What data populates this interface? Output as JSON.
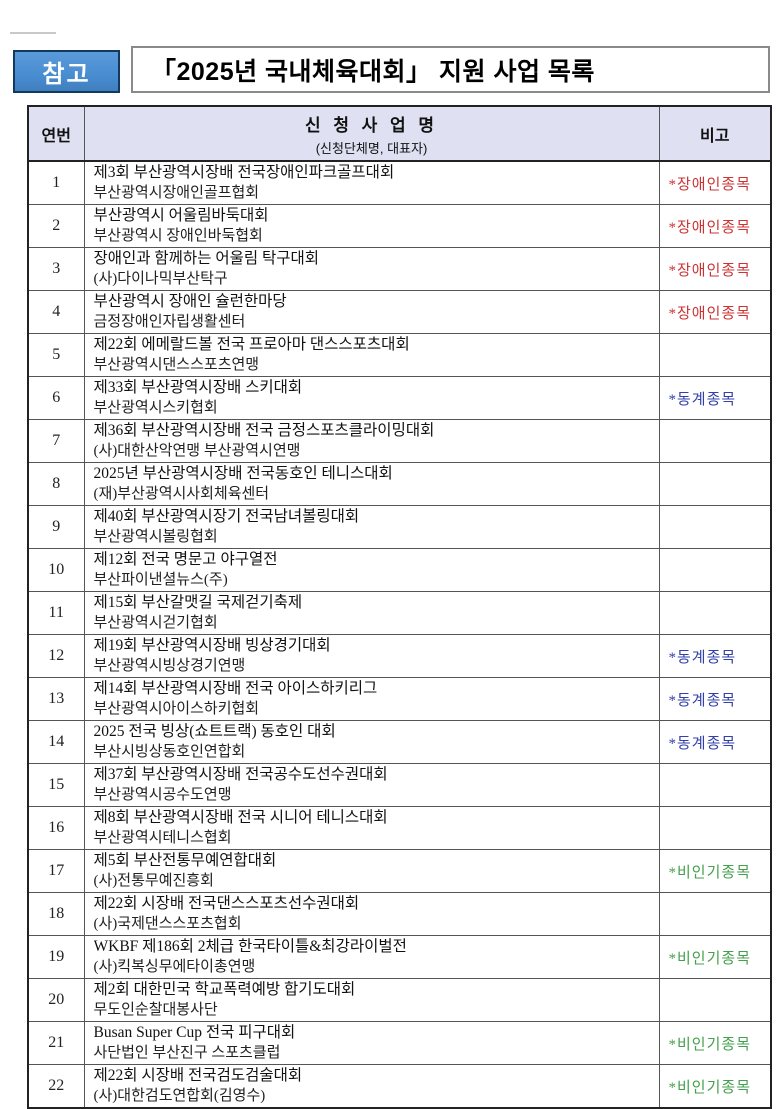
{
  "badge": {
    "label": "참고"
  },
  "title": "「2025년 국내체육대회」  지원 사업 목록",
  "colors": {
    "badge_bg": "#4a8ed2",
    "badge_border": "#123a5e",
    "header_bg": "#dfe1f3",
    "remark_disabled": "#cc3333",
    "remark_winter": "#3340aa",
    "remark_unpopular": "#44a04c"
  },
  "table": {
    "headers": {
      "no": "연번",
      "project": "신 청 사 업 명",
      "project_sub": "(신청단체명, 대표자)",
      "remark": "비고"
    },
    "rows": [
      {
        "no": "1",
        "title": "제3회 부산광역시장배 전국장애인파크골프대회",
        "org": "부산광역시장애인골프협회",
        "remark": "*장애인종목",
        "remark_type": "disabled"
      },
      {
        "no": "2",
        "title": "부산광역시 어울림바둑대회",
        "org": "부산광역시 장애인바둑협회",
        "remark": "*장애인종목",
        "remark_type": "disabled"
      },
      {
        "no": "3",
        "title": "장애인과 함께하는 어울림 탁구대회",
        "org": "(사)다이나믹부산탁구",
        "remark": "*장애인종목",
        "remark_type": "disabled"
      },
      {
        "no": "4",
        "title": "부산광역시 장애인 슐런한마당",
        "org": "금정장애인자립생활센터",
        "remark": "*장애인종목",
        "remark_type": "disabled"
      },
      {
        "no": "5",
        "title": "제22회 에메랄드볼 전국 프로아마 댄스스포츠대회",
        "org": "부산광역시댄스스포츠연맹",
        "remark": "",
        "remark_type": ""
      },
      {
        "no": "6",
        "title": "제33회 부산광역시장배 스키대회",
        "org": "부산광역시스키협회",
        "remark": "*동계종목",
        "remark_type": "winter"
      },
      {
        "no": "7",
        "title": "제36회 부산광역시장배 전국 금정스포츠클라이밍대회",
        "org": "(사)대한산악연맹 부산광역시연맹",
        "remark": "",
        "remark_type": ""
      },
      {
        "no": "8",
        "title": "2025년 부산광역시장배 전국동호인 테니스대회",
        "org": "(재)부산광역시사회체육센터",
        "remark": "",
        "remark_type": ""
      },
      {
        "no": "9",
        "title": "제40회 부산광역시장기 전국남녀볼링대회",
        "org": "부산광역시볼링협회",
        "remark": "",
        "remark_type": ""
      },
      {
        "no": "10",
        "title": "제12회 전국 명문고 야구열전",
        "org": "부산파이낸셜뉴스(주)",
        "remark": "",
        "remark_type": ""
      },
      {
        "no": "11",
        "title": "제15회 부산갈맷길 국제걷기축제",
        "org": "부산광역시걷기협회",
        "remark": "",
        "remark_type": ""
      },
      {
        "no": "12",
        "title": "제19회 부산광역시장배 빙상경기대회",
        "org": "부산광역시빙상경기연맹",
        "remark": "*동계종목",
        "remark_type": "winter"
      },
      {
        "no": "13",
        "title": "제14회 부산광역시장배 전국 아이스하키리그",
        "org": "부산광역시아이스하키협회",
        "remark": "*동계종목",
        "remark_type": "winter"
      },
      {
        "no": "14",
        "title": "2025 전국 빙상(쇼트트랙) 동호인 대회",
        "org": "부산시빙상동호인연합회",
        "remark": "*동계종목",
        "remark_type": "winter"
      },
      {
        "no": "15",
        "title": "제37회 부산광역시장배 전국공수도선수권대회",
        "org": "부산광역시공수도연맹",
        "remark": "",
        "remark_type": ""
      },
      {
        "no": "16",
        "title": "제8회 부산광역시장배 전국 시니어 테니스대회",
        "org": "부산광역시테니스협회",
        "remark": "",
        "remark_type": ""
      },
      {
        "no": "17",
        "title": "제5회 부산전통무예연합대회",
        "org": "(사)전통무예진흥회",
        "remark": "*비인기종목",
        "remark_type": "unpopular"
      },
      {
        "no": "18",
        "title": "제22회 시장배 전국댄스스포츠선수권대회",
        "org": "(사)국제댄스스포츠협회",
        "remark": "",
        "remark_type": ""
      },
      {
        "no": "19",
        "title": "WKBF 제186회 2체급 한국타이틀&최강라이벌전",
        "org": "(사)킥복싱무에타이총연맹",
        "remark": "*비인기종목",
        "remark_type": "unpopular"
      },
      {
        "no": "20",
        "title": "제2회 대한민국 학교폭력예방 합기도대회",
        "org": "무도인순찰대봉사단",
        "remark": "",
        "remark_type": ""
      },
      {
        "no": "21",
        "title": "Busan Super Cup 전국 피구대회",
        "org": "사단법인 부산진구 스포츠클럽",
        "remark": "*비인기종목",
        "remark_type": "unpopular"
      },
      {
        "no": "22",
        "title": "제22회 시장배 전국검도검술대회",
        "org": "(사)대한검도연합회(김영수)",
        "remark": "*비인기종목",
        "remark_type": "unpopular"
      }
    ]
  }
}
